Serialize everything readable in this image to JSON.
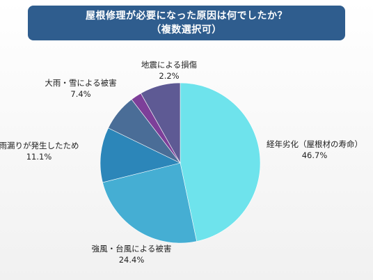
{
  "chart_data": {
    "type": "pie",
    "title_lines": [
      "屋根修理が必要になった原因は何でしたか？",
      "（複数選択可）"
    ],
    "slices": [
      {
        "label": "経年劣化（屋根材の寿命）",
        "value": 46.7,
        "display": "46.7%",
        "color": "#6ee3ec"
      },
      {
        "label": "強風・台風による被害",
        "value": 24.4,
        "display": "24.4%",
        "color": "#45aed3"
      },
      {
        "label": "雨漏りが発生したため",
        "value": 11.1,
        "display": "11.1%",
        "color": "#2c86b9"
      },
      {
        "label": "大雨・雪による被害",
        "value": 7.4,
        "display": "7.4%",
        "color": "#4a6d97"
      },
      {
        "label": "地震による損傷",
        "value": 2.2,
        "display": "2.2%",
        "color": "#7d3f99"
      },
      {
        "label": "",
        "value": 8.2,
        "display": "",
        "color": "#5e5a94"
      }
    ]
  }
}
